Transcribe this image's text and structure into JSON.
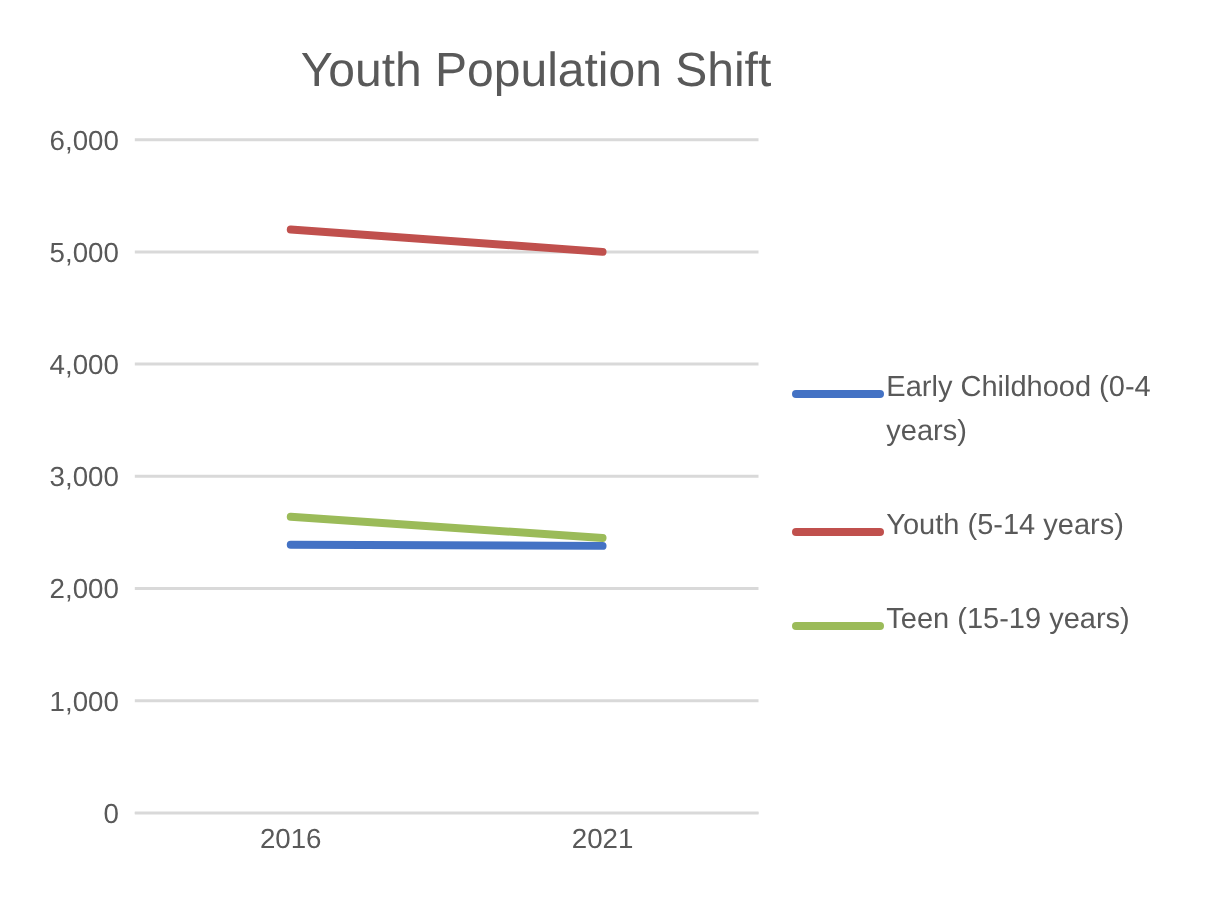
{
  "chart_data": {
    "type": "line",
    "title": "Youth Population Shift",
    "categories": [
      "2016",
      "2021"
    ],
    "series": [
      {
        "name": "Early Childhood (0-4 years)",
        "color": "#4472c4",
        "values": [
          2390,
          2380
        ]
      },
      {
        "name": "Youth (5-14 years)",
        "color": "#c0504d",
        "values": [
          5200,
          5000
        ]
      },
      {
        "name": "Teen (15-19 years)",
        "color": "#9bbb59",
        "values": [
          2640,
          2450
        ]
      }
    ],
    "ylim": [
      0,
      6000
    ],
    "yticks": [
      {
        "value": 0,
        "label": "0"
      },
      {
        "value": 1000,
        "label": "1,000"
      },
      {
        "value": 2000,
        "label": "2,000"
      },
      {
        "value": 3000,
        "label": "3,000"
      },
      {
        "value": 4000,
        "label": "4,000"
      },
      {
        "value": 5000,
        "label": "5,000"
      },
      {
        "value": 6000,
        "label": "6,000"
      }
    ],
    "grid": "y",
    "legend": "right",
    "marker": "none",
    "line_style": "solid"
  }
}
